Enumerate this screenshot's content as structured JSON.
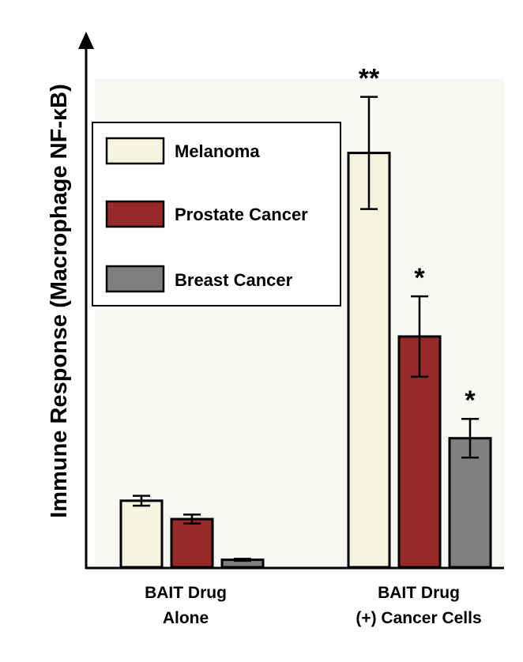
{
  "chart_data": {
    "type": "bar",
    "title": "",
    "xlabel": "",
    "ylabel": "Immune Response (Macrophage NF-κB)",
    "ylim": [
      0,
      100
    ],
    "grid": false,
    "legend_position": "top-left",
    "categories": [
      {
        "line1": "BAIT Drug",
        "line2": "Alone"
      },
      {
        "line1": "BAIT Drug",
        "line2": "(+) Cancer Cells"
      }
    ],
    "series": [
      {
        "name": "Melanoma",
        "color": "#f6f4e0",
        "values": [
          13.4,
          83.5
        ],
        "errors": [
          1.0,
          11.3
        ],
        "significance": [
          "",
          "**"
        ]
      },
      {
        "name": "Prostate Cancer",
        "color": "#962a2a",
        "values": [
          9.7,
          46.5
        ],
        "errors": [
          0.9,
          8.1
        ],
        "significance": [
          "",
          "*"
        ]
      },
      {
        "name": "Breast Cancer",
        "color": "#7f7f7f",
        "values": [
          1.5,
          26.0
        ],
        "errors": [
          0.2,
          3.9
        ],
        "significance": [
          "",
          "*"
        ]
      }
    ]
  }
}
